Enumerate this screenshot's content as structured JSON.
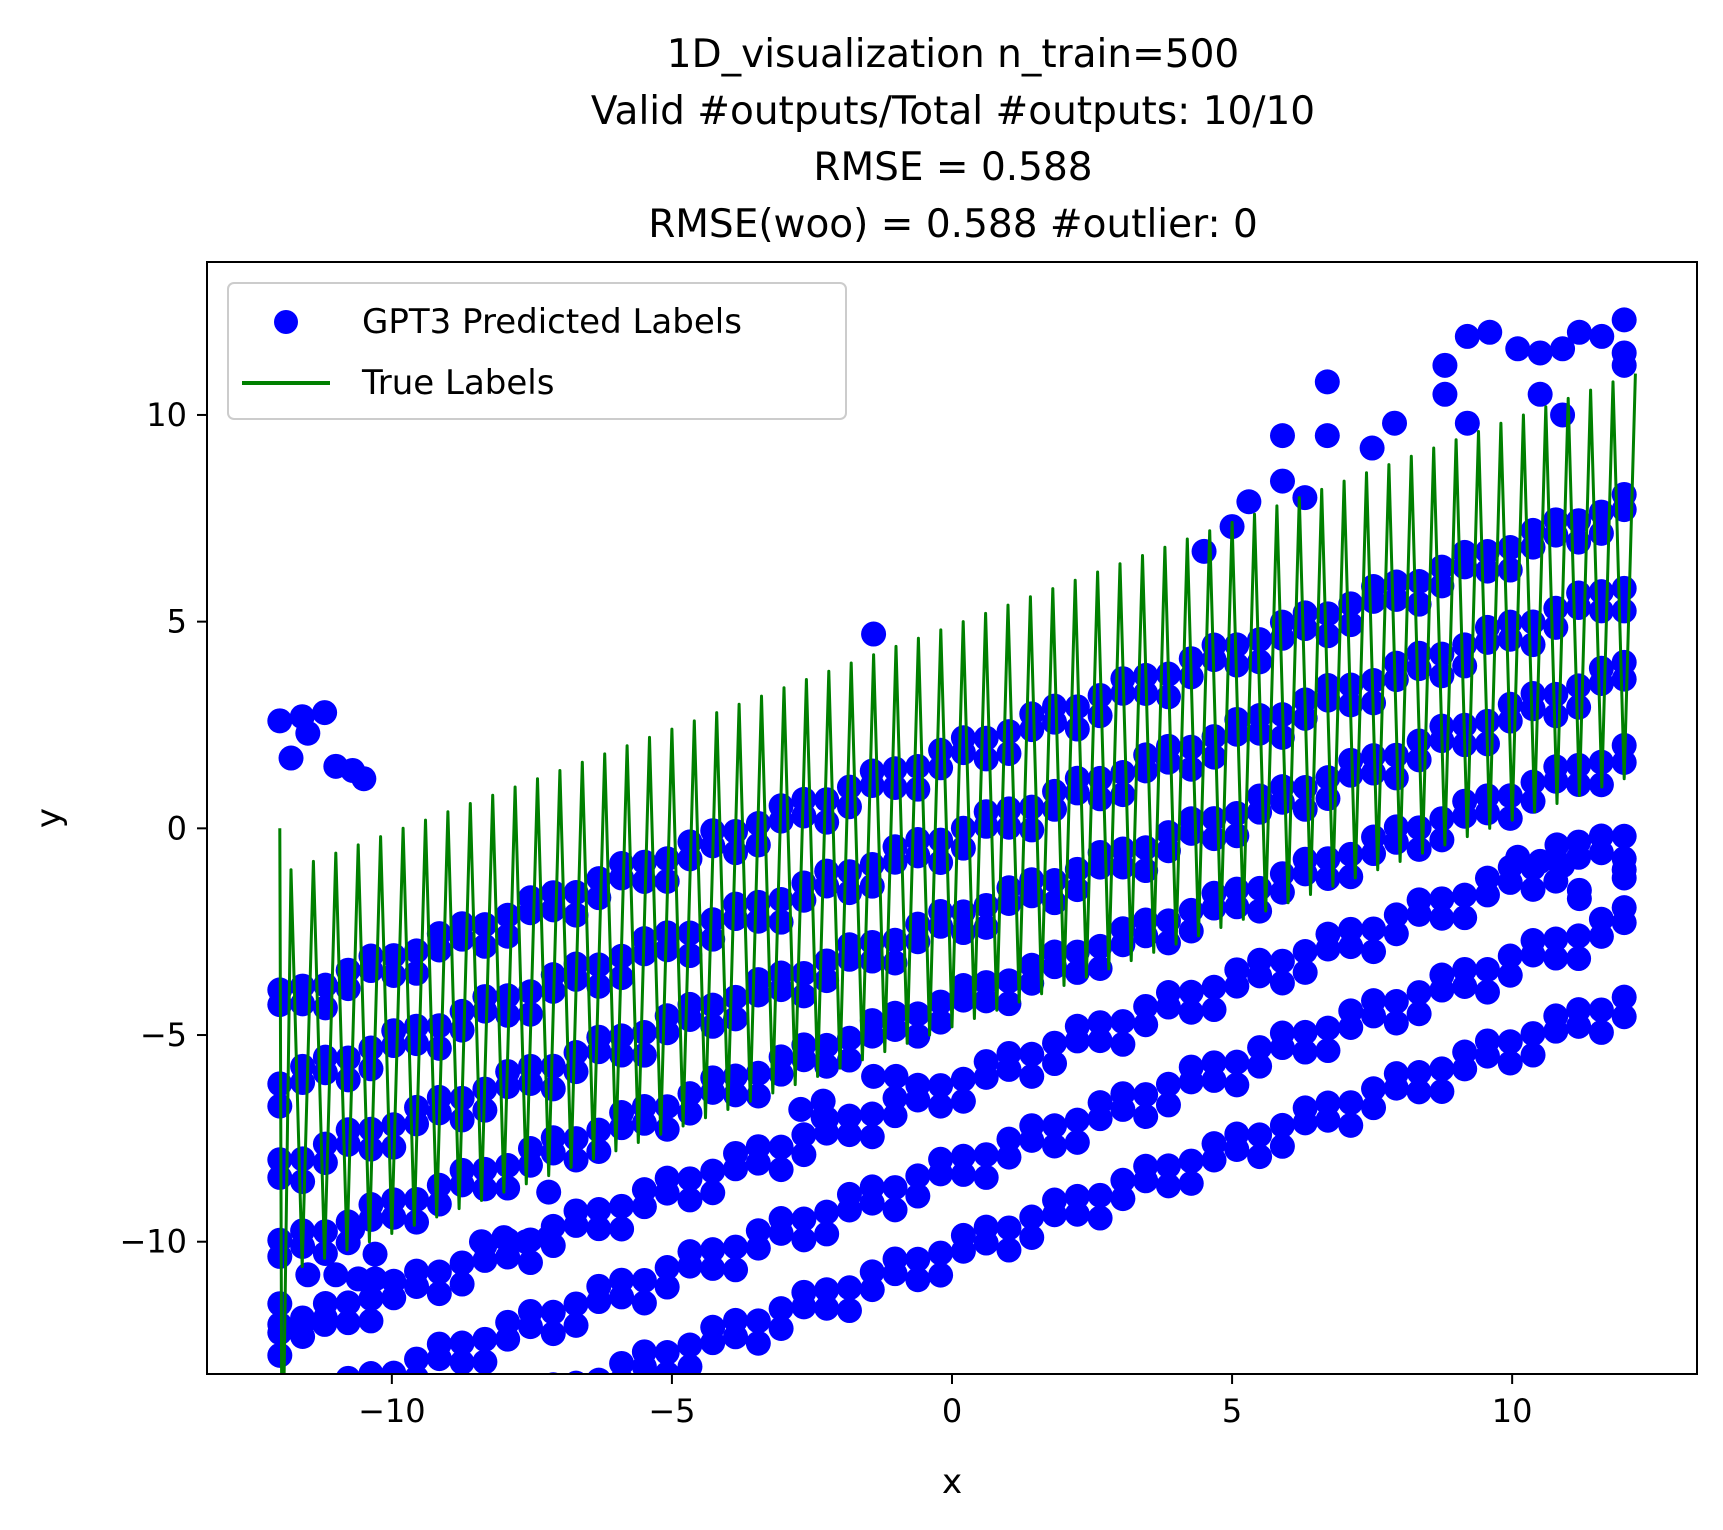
{
  "chart_data": {
    "type": "scatter",
    "title_lines": [
      "1D_visualization  n_train=500",
      "Valid #outputs/Total #outputs: 10/10",
      "RMSE      = 0.588",
      "RMSE(woo) = 0.588   #outlier: 0"
    ],
    "xlabel": "x",
    "ylabel": "y",
    "xlim": [
      -13.3,
      13.3
    ],
    "ylim": [
      -13.2,
      13.7
    ],
    "xticks": [
      -10,
      -5,
      0,
      5,
      10
    ],
    "yticks": [
      -10,
      -5,
      0,
      5,
      10
    ],
    "xtick_labels": [
      "−10",
      "−5",
      "0",
      "5",
      "10"
    ],
    "ytick_labels": [
      "−10",
      "−5",
      "0",
      "5",
      "10"
    ],
    "grid": false,
    "legend": {
      "placement": "upper-left",
      "entries": [
        {
          "label": "GPT3 Predicted Labels",
          "marker": "circle",
          "color": "#0000ff"
        },
        {
          "label": "True Labels",
          "marker": "line",
          "color": "#008000"
        }
      ]
    },
    "series": [
      {
        "name": "GPT3 Predicted Labels",
        "kind": "scatter",
        "color": "#0000ff",
        "generator": {
          "x_range": [
            -12,
            12
          ],
          "n_columns": 60,
          "band_offsets": [
            -10.5,
            -8.5,
            -6.5,
            -4.5,
            -2.5,
            -0.5,
            1.5
          ],
          "slope": 0.5,
          "intercept": 0
        },
        "points": [
          [
            -12.0,
            -12.0
          ],
          [
            -11.6,
            -12.0
          ],
          [
            -11.2,
            -12.0
          ],
          [
            -12.0,
            -11.5
          ],
          [
            -11.5,
            -10.8
          ],
          [
            -11.0,
            -10.8
          ],
          [
            -10.6,
            -10.9
          ],
          [
            -10.3,
            -10.9
          ],
          [
            -10.3,
            -10.3
          ],
          [
            -10.7,
            -9.7
          ],
          [
            -8.4,
            -10.0
          ],
          [
            -8.0,
            -9.9
          ],
          [
            -7.6,
            -10.0
          ],
          [
            -7.2,
            -9.9
          ],
          [
            -7.2,
            -8.8
          ],
          [
            -12.0,
            2.6
          ],
          [
            -11.6,
            2.7
          ],
          [
            -11.2,
            2.8
          ],
          [
            -11.5,
            2.3
          ],
          [
            -11.8,
            1.7
          ],
          [
            -11.0,
            1.5
          ],
          [
            -10.5,
            1.2
          ],
          [
            -10.7,
            1.4
          ],
          [
            -2.7,
            -6.8
          ],
          [
            -2.3,
            -7.0
          ],
          [
            -2.3,
            -6.6
          ],
          [
            -1.4,
            4.7
          ],
          [
            -1.4,
            -6.0
          ],
          [
            -1.0,
            -6.0
          ],
          [
            4.5,
            6.7
          ],
          [
            5.0,
            7.3
          ],
          [
            5.3,
            7.9
          ],
          [
            5.9,
            9.5
          ],
          [
            5.9,
            8.4
          ],
          [
            6.3,
            8.0
          ],
          [
            6.7,
            10.8
          ],
          [
            6.7,
            9.5
          ],
          [
            7.5,
            9.2
          ],
          [
            7.9,
            9.8
          ],
          [
            8.8,
            11.2
          ],
          [
            8.8,
            10.5
          ],
          [
            9.2,
            11.9
          ],
          [
            9.6,
            12.0
          ],
          [
            9.2,
            9.8
          ],
          [
            10.1,
            11.6
          ],
          [
            10.5,
            11.5
          ],
          [
            10.9,
            11.6
          ],
          [
            11.2,
            12.0
          ],
          [
            11.6,
            11.9
          ],
          [
            12.0,
            12.3
          ],
          [
            12.0,
            11.5
          ],
          [
            12.0,
            11.2
          ],
          [
            10.5,
            10.5
          ],
          [
            10.9,
            10.0
          ],
          [
            10.1,
            -0.7
          ],
          [
            10.5,
            -0.8
          ],
          [
            10.8,
            -0.4
          ],
          [
            10.9,
            -0.9
          ],
          [
            11.2,
            -1.5
          ],
          [
            11.2,
            -1.7
          ],
          [
            12.0,
            -1.0
          ],
          [
            12.0,
            -1.2
          ]
        ]
      },
      {
        "name": "True Labels",
        "kind": "line",
        "color": "#008000",
        "generator": {
          "x_range": [
            -12,
            12
          ],
          "n_teeth": 60,
          "slope": 0.5,
          "low_offset": -4.8,
          "high_offset": 5.0
        }
      }
    ]
  }
}
